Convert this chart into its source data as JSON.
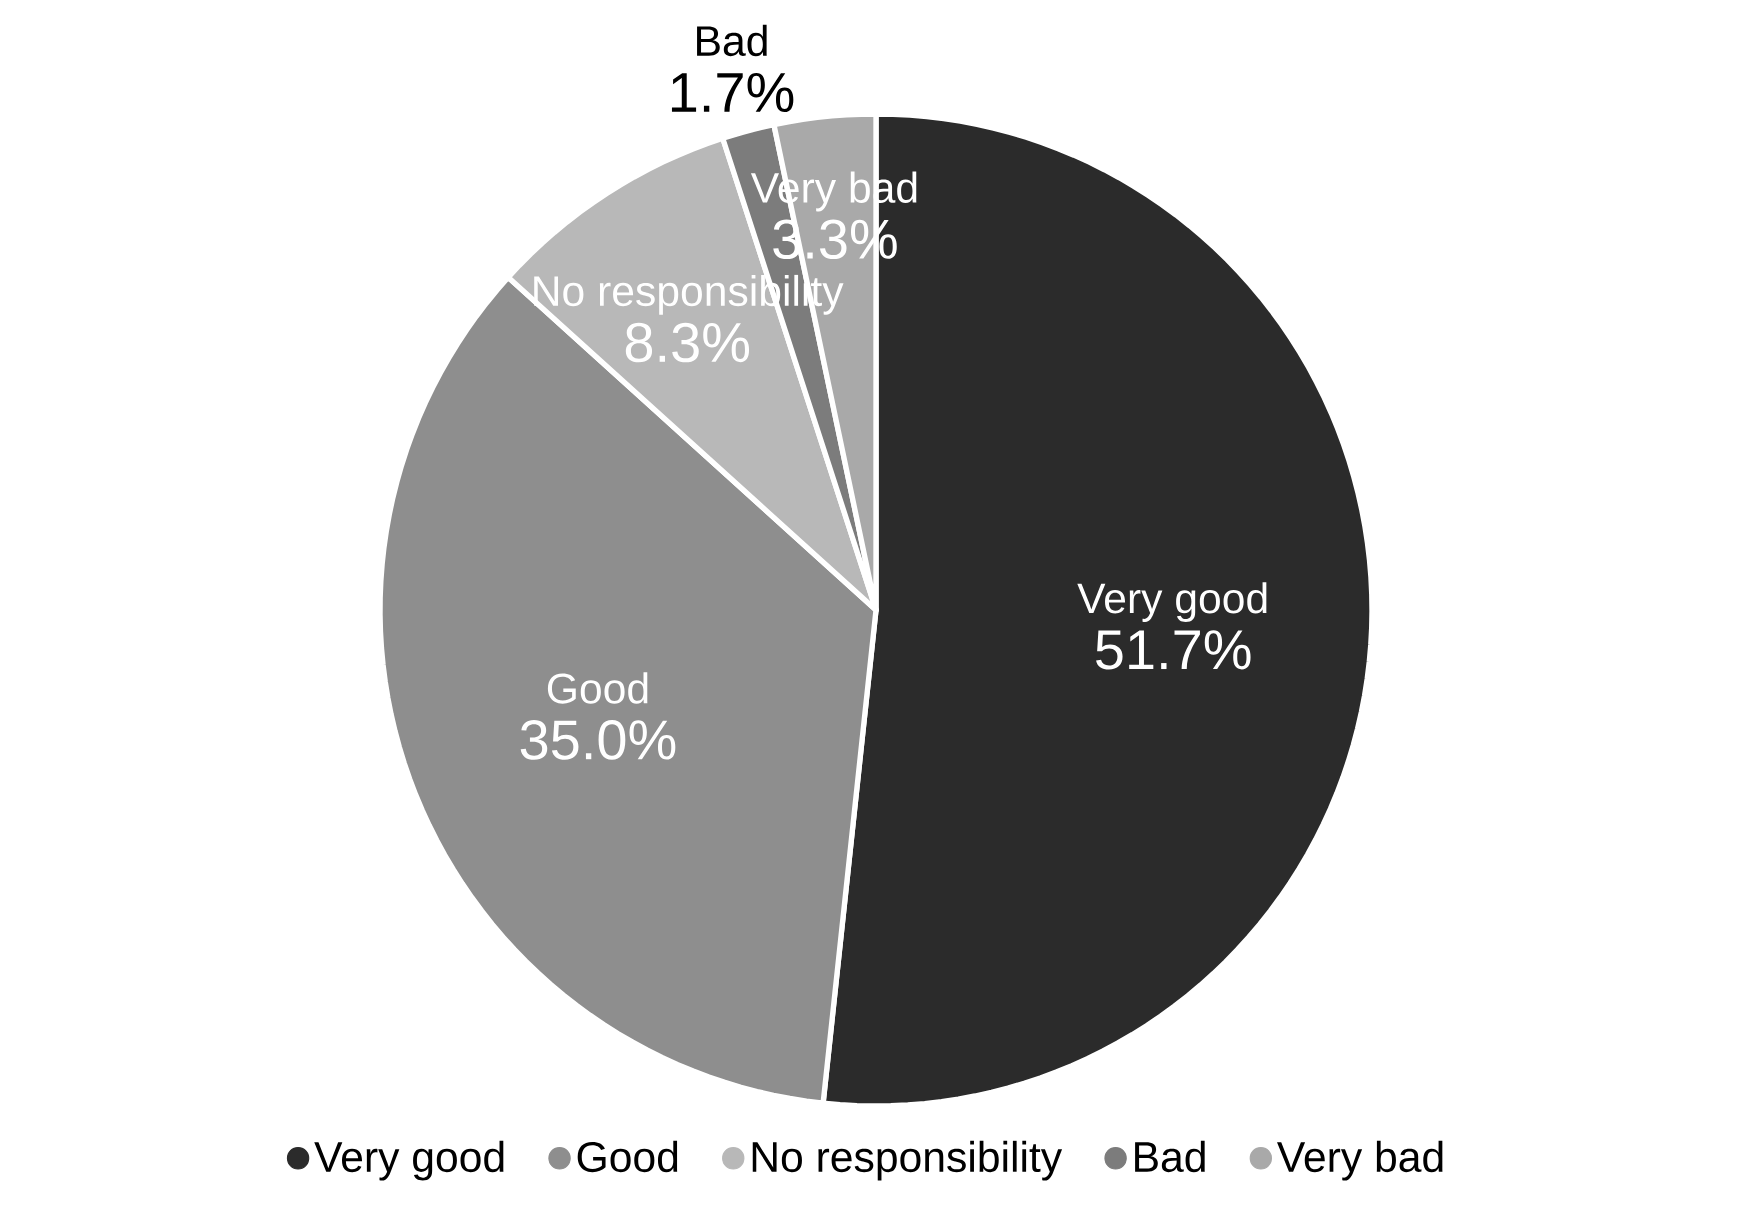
{
  "chart_data": {
    "type": "pie",
    "categories": [
      "Very good",
      "Good",
      "No responsibility",
      "Bad",
      "Very bad"
    ],
    "values": [
      51.7,
      35.0,
      8.3,
      1.7,
      3.3
    ],
    "value_labels": [
      "51.7%",
      "35.0%",
      "8.3%",
      "1.7%",
      "3.3%"
    ],
    "colors": [
      "#2b2b2b",
      "#8e8e8e",
      "#b8b8b8",
      "#7c7c7c",
      "#a9a9a9"
    ],
    "legend": "bottom"
  }
}
